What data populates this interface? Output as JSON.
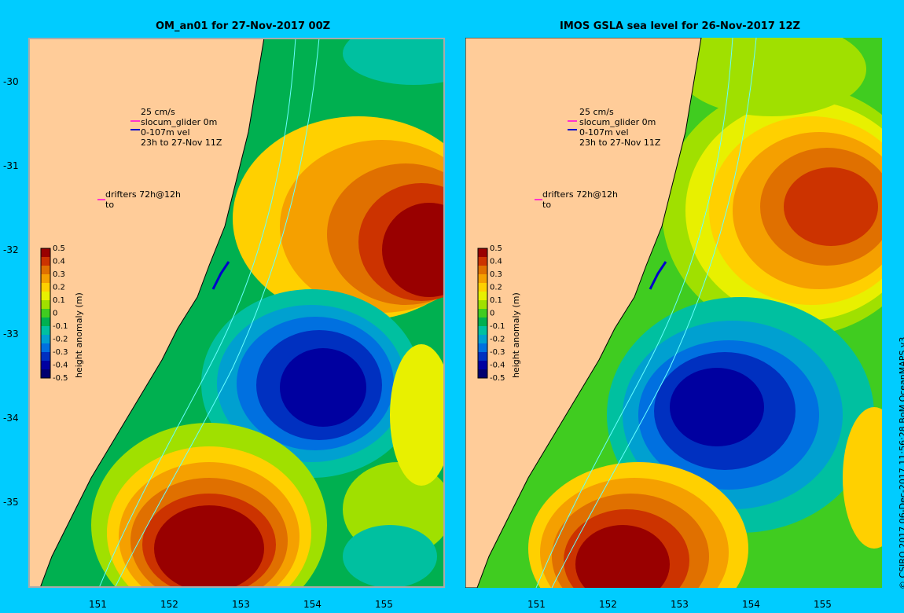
{
  "panels": [
    {
      "title": "OM_an01 for 27-Nov-2017 00Z"
    },
    {
      "title": "IMOS GSLA sea level  for 26-Nov-2017 12Z"
    }
  ],
  "axes": {
    "lat_ticks": [
      "-30",
      "-31",
      "-32",
      "-33",
      "-34",
      "-35"
    ],
    "lon_ticks": [
      "151",
      "152",
      "153",
      "154",
      "155"
    ]
  },
  "legend": {
    "speed_label": "25 cm/s",
    "glider_label": "slocum_glider 0m",
    "vel_label": "0-107m vel",
    "time_label": "23h to 27-Nov 11Z",
    "drifters_label": "drifters 72h@12h",
    "drifters_to": "to",
    "arrow_magenta": "#ff33cc",
    "arrow_blue": "#0000cc"
  },
  "colorbar": {
    "label": "height anomaly (m)",
    "ticks": [
      "0.5",
      "0.4",
      "0.3",
      "0.2",
      "0.1",
      "0",
      "-0.1",
      "-0.2",
      "-0.3",
      "-0.4",
      "-0.5"
    ],
    "colors": [
      "#990000",
      "#cc3300",
      "#e07000",
      "#f5a000",
      "#ffd000",
      "#e8f000",
      "#a0e000",
      "#40cc20",
      "#00b050",
      "#00c0a0",
      "#00a0d0",
      "#0070e0",
      "#0030c0",
      "#0000a0",
      "#000070"
    ]
  },
  "footer": {
    "copyright": "© CSIRO 2017   06-Dec-2017 11:56:28 BoM OceanMAPS v3"
  },
  "colors": {
    "land": "#ffcc99",
    "background": "#00ccff",
    "contour": "#66ffff"
  }
}
